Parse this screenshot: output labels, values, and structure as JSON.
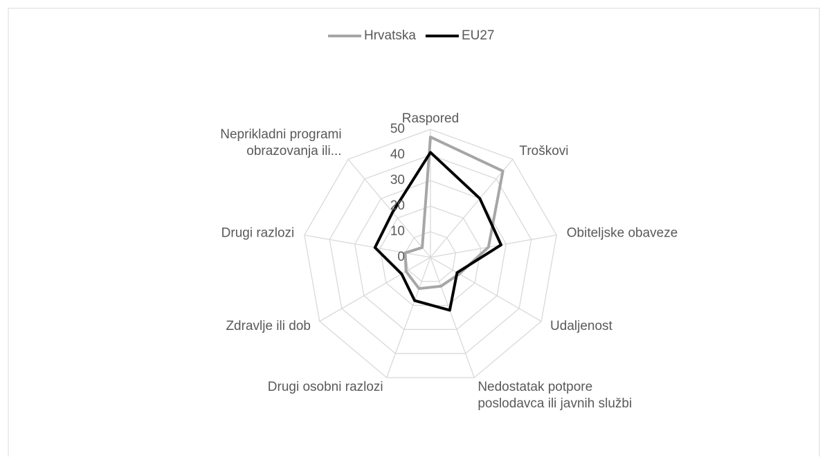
{
  "chart_data": {
    "type": "radar",
    "categories": [
      "Raspored",
      "Troškovi",
      "Obiteljske obaveze",
      "Udaljenost",
      "Nedostatak potpore poslodavca ili javnih službi",
      "Drugi osobni razlozi",
      "Zdravlje ili dob",
      "Drugi razlozi",
      "Neprikladni programi obrazovanja ili..."
    ],
    "series": [
      {
        "name": "Hrvatska",
        "color": "#a6a6a6",
        "values": [
          47,
          44,
          23,
          13,
          12,
          13,
          11,
          10,
          5
        ]
      },
      {
        "name": "EU27",
        "color": "#000000",
        "values": [
          41,
          30,
          28,
          12,
          22,
          18,
          13,
          22,
          23
        ]
      }
    ],
    "ylim": [
      0,
      50
    ],
    "yticks": [
      0,
      10,
      20,
      30,
      40,
      50
    ],
    "grid": true,
    "legend": "top"
  }
}
